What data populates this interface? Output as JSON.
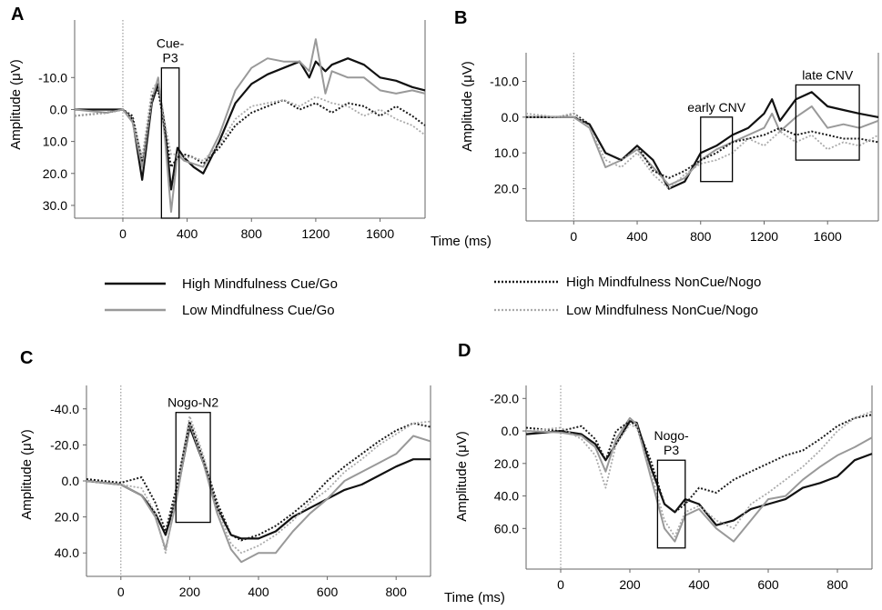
{
  "legend": {
    "colors": {
      "high": "#111111",
      "low": "#999999",
      "high_nc": "#1a1a1a",
      "low_nc": "#aaaaaa"
    },
    "entries": [
      {
        "key": "high_cg",
        "label": "High Mindfulness Cue/Go",
        "style": "solid-dark"
      },
      {
        "key": "low_cg",
        "label": "Low Mindfulness Cue/Go",
        "style": "solid-light"
      },
      {
        "key": "high_nn",
        "label": "High Mindfulness NonCue/Nogo",
        "style": "dotted-dark"
      },
      {
        "key": "low_nn",
        "label": "Low Mindfulness NonCue/Nogo",
        "style": "dotted-light"
      }
    ]
  },
  "chart_data": [
    {
      "panel": "A",
      "type": "line",
      "ylabel": "Amplitude  (μV)",
      "xlabel": "",
      "xlim": [
        -300,
        1880
      ],
      "ylim": [
        34,
        -28
      ],
      "y_inverted": true,
      "xticks": [
        {
          "v": 0,
          "t": "0"
        },
        {
          "v": 400,
          "t": "400"
        },
        {
          "v": 800,
          "t": "800"
        },
        {
          "v": 1200,
          "t": "1200"
        },
        {
          "v": 1600,
          "t": "1600"
        }
      ],
      "yticks": [
        {
          "v": -10,
          "t": "-10.0"
        },
        {
          "v": 0,
          "t": "0.0"
        },
        {
          "v": 10,
          "t": "10.0"
        },
        {
          "v": 20,
          "t": "20.0"
        },
        {
          "v": 30,
          "t": "30.0"
        }
      ],
      "boxes": [
        {
          "label": "Cue-\nP3",
          "x": [
            240,
            350
          ],
          "y": [
            -13,
            34
          ]
        }
      ],
      "series": [
        {
          "key": "high_cg",
          "x": [
            -300,
            -100,
            0,
            60,
            120,
            180,
            220,
            260,
            300,
            340,
            380,
            440,
            500,
            600,
            700,
            800,
            900,
            1000,
            1100,
            1160,
            1200,
            1260,
            1300,
            1400,
            1500,
            1600,
            1700,
            1800,
            1880
          ],
          "y": [
            0,
            0,
            0,
            3,
            22,
            -2,
            -8,
            5,
            25,
            12,
            15,
            18,
            20,
            10,
            -2,
            -8,
            -11,
            -13,
            -15,
            -10,
            -15,
            -12,
            -14,
            -16,
            -14,
            -10,
            -9,
            -7,
            -6
          ]
        },
        {
          "key": "low_cg",
          "x": [
            -300,
            -100,
            0,
            60,
            120,
            180,
            220,
            260,
            300,
            340,
            380,
            440,
            500,
            600,
            700,
            800,
            900,
            1000,
            1100,
            1160,
            1200,
            1260,
            1300,
            1400,
            1500,
            1600,
            1700,
            1800,
            1880
          ],
          "y": [
            0,
            1,
            0,
            4,
            18,
            -3,
            -10,
            8,
            32,
            14,
            16,
            17,
            18,
            8,
            -6,
            -13,
            -16,
            -15,
            -15,
            -12,
            -22,
            -5,
            -12,
            -10,
            -10,
            -6,
            -5,
            -6,
            -5
          ]
        },
        {
          "key": "high_nn",
          "x": [
            -300,
            -100,
            0,
            60,
            120,
            180,
            220,
            260,
            300,
            340,
            380,
            440,
            500,
            600,
            700,
            800,
            900,
            1000,
            1100,
            1200,
            1300,
            1400,
            1500,
            1600,
            1700,
            1800,
            1880
          ],
          "y": [
            2,
            1,
            0,
            2,
            16,
            -4,
            -6,
            6,
            18,
            15,
            14,
            15,
            17,
            12,
            5,
            1,
            -1,
            -3,
            0,
            -2,
            1,
            -2,
            -1,
            2,
            -1,
            2,
            5
          ]
        },
        {
          "key": "low_nn",
          "x": [
            -300,
            -100,
            0,
            60,
            120,
            180,
            220,
            260,
            300,
            340,
            380,
            440,
            500,
            600,
            700,
            800,
            900,
            1000,
            1100,
            1200,
            1300,
            1400,
            1500,
            1600,
            1700,
            1800,
            1880
          ],
          "y": [
            2,
            1,
            0,
            3,
            15,
            -6,
            -9,
            4,
            14,
            14,
            15,
            15,
            16,
            11,
            3,
            -1,
            -2,
            -3,
            -1,
            -4,
            -2,
            -1,
            2,
            0,
            3,
            5,
            8
          ]
        }
      ]
    },
    {
      "panel": "B",
      "type": "line",
      "ylabel": "Amplitude  (μV)",
      "xlabel": "Time  (ms)",
      "xlim": [
        -300,
        1920
      ],
      "ylim": [
        29,
        -18
      ],
      "y_inverted": true,
      "xticks": [
        {
          "v": 0,
          "t": "0"
        },
        {
          "v": 400,
          "t": "400"
        },
        {
          "v": 800,
          "t": "800"
        },
        {
          "v": 1200,
          "t": "1200"
        },
        {
          "v": 1600,
          "t": "1600"
        }
      ],
      "yticks": [
        {
          "v": -10,
          "t": "-10.0"
        },
        {
          "v": 0,
          "t": "0.0"
        },
        {
          "v": 10,
          "t": "10.0"
        },
        {
          "v": 20,
          "t": "20.0"
        }
      ],
      "boxes": [
        {
          "label": "early  CNV",
          "x": [
            800,
            1000
          ],
          "y": [
            0,
            18
          ]
        },
        {
          "label": "late  CNV",
          "x": [
            1400,
            1800
          ],
          "y": [
            -9,
            12
          ]
        }
      ],
      "series": [
        {
          "key": "high_cg",
          "x": [
            -300,
            -100,
            0,
            100,
            200,
            300,
            400,
            500,
            600,
            700,
            800,
            900,
            1000,
            1100,
            1200,
            1250,
            1300,
            1400,
            1500,
            1600,
            1700,
            1800,
            1920
          ],
          "y": [
            0,
            0,
            0,
            2,
            10,
            12,
            8,
            12,
            20,
            18,
            10,
            8,
            5,
            3,
            -1,
            -5,
            1,
            -5,
            -7,
            -3,
            -2,
            -1,
            0
          ]
        },
        {
          "key": "low_cg",
          "x": [
            -300,
            -100,
            0,
            100,
            200,
            300,
            400,
            500,
            600,
            700,
            800,
            900,
            1000,
            1100,
            1200,
            1250,
            1300,
            1400,
            1500,
            1600,
            1700,
            1800,
            1920
          ],
          "y": [
            0,
            0,
            0,
            3,
            14,
            12,
            9,
            14,
            19,
            17,
            12,
            9,
            7,
            5,
            3,
            -1,
            4,
            0,
            -3,
            3,
            2,
            3,
            1
          ]
        },
        {
          "key": "high_nn",
          "x": [
            -300,
            -100,
            0,
            100,
            200,
            300,
            400,
            500,
            600,
            700,
            800,
            900,
            1000,
            1100,
            1200,
            1300,
            1400,
            1500,
            1600,
            1700,
            1800,
            1920
          ],
          "y": [
            0,
            0,
            -1,
            2,
            10,
            12,
            8,
            15,
            17,
            15,
            12,
            10,
            7,
            6,
            5,
            3,
            5,
            4,
            5,
            6,
            6,
            7
          ]
        },
        {
          "key": "low_nn",
          "x": [
            -300,
            -100,
            0,
            100,
            200,
            300,
            400,
            500,
            600,
            700,
            800,
            900,
            1000,
            1100,
            1200,
            1300,
            1400,
            1500,
            1600,
            1700,
            1800,
            1920
          ],
          "y": [
            -1,
            0,
            -1,
            3,
            12,
            14,
            10,
            16,
            20,
            16,
            13,
            12,
            10,
            6,
            8,
            4,
            7,
            5,
            9,
            7,
            8,
            5
          ]
        }
      ]
    },
    {
      "panel": "C",
      "type": "line",
      "ylabel": "Amplitude  (μV)",
      "xlabel": "",
      "xlim": [
        -100,
        900
      ],
      "ylim": [
        53,
        -53
      ],
      "y_inverted": true,
      "xticks": [
        {
          "v": 0,
          "t": "0"
        },
        {
          "v": 200,
          "t": "200"
        },
        {
          "v": 400,
          "t": "400"
        },
        {
          "v": 600,
          "t": "600"
        },
        {
          "v": 800,
          "t": "800"
        }
      ],
      "yticks": [
        {
          "v": -40,
          "t": "-40.0"
        },
        {
          "v": -20,
          "t": "-20.0"
        },
        {
          "v": 0,
          "t": "0.0"
        },
        {
          "v": 20,
          "t": "20.0"
        },
        {
          "v": 40,
          "t": "40.0"
        }
      ],
      "boxes": [
        {
          "label": "Nogo-N2",
          "x": [
            160,
            260
          ],
          "y": [
            -38,
            23
          ]
        }
      ],
      "series": [
        {
          "key": "high_cg",
          "x": [
            -100,
            0,
            60,
            100,
            130,
            160,
            200,
            240,
            280,
            320,
            350,
            400,
            450,
            500,
            550,
            600,
            650,
            700,
            750,
            800,
            850,
            900
          ],
          "y": [
            0,
            2,
            8,
            18,
            30,
            10,
            -30,
            -10,
            15,
            30,
            32,
            32,
            28,
            20,
            15,
            10,
            5,
            2,
            -3,
            -8,
            -12,
            -12
          ]
        },
        {
          "key": "low_cg",
          "x": [
            -100,
            0,
            60,
            100,
            130,
            160,
            200,
            240,
            280,
            320,
            350,
            400,
            450,
            500,
            550,
            600,
            650,
            700,
            750,
            800,
            850,
            900
          ],
          "y": [
            0,
            2,
            8,
            20,
            38,
            12,
            -32,
            -10,
            18,
            38,
            45,
            40,
            40,
            28,
            18,
            10,
            0,
            -5,
            -10,
            -15,
            -25,
            -22
          ]
        },
        {
          "key": "high_nn",
          "x": [
            -100,
            0,
            60,
            100,
            130,
            160,
            200,
            240,
            280,
            320,
            350,
            400,
            450,
            500,
            550,
            600,
            650,
            700,
            750,
            800,
            850,
            900
          ],
          "y": [
            -1,
            1,
            -2,
            12,
            28,
            5,
            -33,
            -12,
            12,
            30,
            33,
            30,
            25,
            18,
            10,
            0,
            -8,
            -15,
            -22,
            -28,
            -32,
            -30
          ]
        },
        {
          "key": "low_nn",
          "x": [
            -100,
            0,
            60,
            100,
            130,
            160,
            200,
            240,
            280,
            320,
            350,
            400,
            450,
            500,
            550,
            600,
            650,
            700,
            750,
            800,
            850,
            900
          ],
          "y": [
            0,
            2,
            4,
            18,
            40,
            8,
            -36,
            -14,
            15,
            35,
            40,
            36,
            30,
            22,
            12,
            5,
            -5,
            -12,
            -20,
            -26,
            -32,
            -33
          ]
        }
      ]
    },
    {
      "panel": "D",
      "type": "line",
      "ylabel": "Amplitude  (μV)",
      "xlabel": "Time  (ms)",
      "xlim": [
        -100,
        900
      ],
      "ylim": [
        85,
        -28
      ],
      "y_inverted": true,
      "xticks": [
        {
          "v": 0,
          "t": "0"
        },
        {
          "v": 200,
          "t": "200"
        },
        {
          "v": 400,
          "t": "400"
        },
        {
          "v": 600,
          "t": "600"
        },
        {
          "v": 800,
          "t": "800"
        }
      ],
      "yticks": [
        {
          "v": -20,
          "t": "-20.0"
        },
        {
          "v": 0,
          "t": "0.0"
        },
        {
          "v": 20,
          "t": "20.0"
        },
        {
          "v": 40,
          "t": "40.0"
        },
        {
          "v": 60,
          "t": "60.0"
        }
      ],
      "boxes": [
        {
          "label": "Nogo-\nP3",
          "x": [
            280,
            360
          ],
          "y": [
            18,
            72
          ]
        }
      ],
      "series": [
        {
          "key": "high_cg",
          "x": [
            -100,
            0,
            60,
            100,
            130,
            160,
            200,
            220,
            260,
            300,
            330,
            360,
            400,
            450,
            500,
            550,
            600,
            650,
            700,
            750,
            800,
            850,
            900
          ],
          "y": [
            2,
            0,
            2,
            8,
            18,
            8,
            -6,
            -5,
            22,
            45,
            50,
            42,
            45,
            58,
            55,
            48,
            45,
            42,
            35,
            32,
            28,
            18,
            14
          ]
        },
        {
          "key": "low_cg",
          "x": [
            -100,
            0,
            60,
            100,
            130,
            160,
            200,
            220,
            260,
            300,
            330,
            360,
            400,
            450,
            500,
            550,
            600,
            650,
            700,
            750,
            800,
            850,
            900
          ],
          "y": [
            0,
            1,
            3,
            10,
            25,
            5,
            -8,
            -4,
            28,
            60,
            68,
            52,
            48,
            60,
            68,
            55,
            42,
            40,
            30,
            22,
            15,
            10,
            4
          ]
        },
        {
          "key": "high_nn",
          "x": [
            -100,
            0,
            60,
            100,
            130,
            160,
            200,
            220,
            260,
            300,
            330,
            360,
            400,
            450,
            500,
            550,
            600,
            650,
            700,
            750,
            800,
            850,
            900
          ],
          "y": [
            -2,
            0,
            -3,
            5,
            18,
            0,
            -6,
            -3,
            18,
            45,
            50,
            45,
            35,
            38,
            30,
            25,
            20,
            15,
            12,
            5,
            -3,
            -8,
            -10
          ]
        },
        {
          "key": "low_nn",
          "x": [
            -100,
            0,
            60,
            100,
            130,
            160,
            200,
            220,
            260,
            300,
            330,
            360,
            400,
            450,
            500,
            550,
            600,
            650,
            700,
            750,
            800,
            850,
            900
          ],
          "y": [
            0,
            -2,
            5,
            15,
            35,
            8,
            -4,
            -2,
            25,
            55,
            65,
            50,
            46,
            55,
            60,
            45,
            38,
            30,
            22,
            12,
            0,
            -8,
            -12
          ]
        }
      ]
    }
  ]
}
